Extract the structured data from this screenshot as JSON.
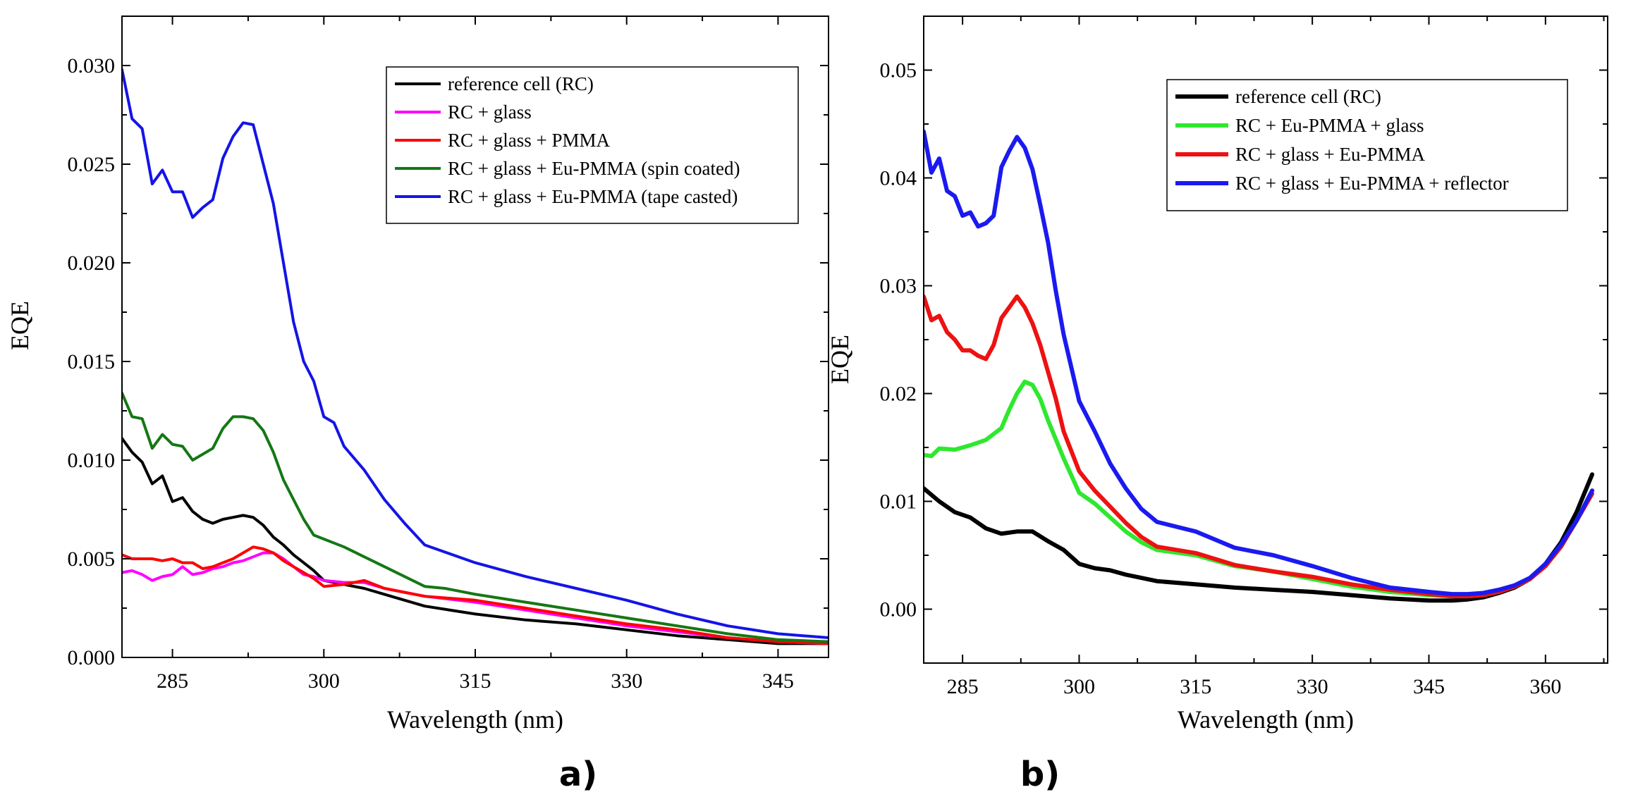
{
  "chart_data": [
    {
      "type": "line",
      "panel_label": "a)",
      "title": "",
      "xlabel": "Wavelength (nm)",
      "ylabel": "EQE",
      "xlim": [
        280,
        350
      ],
      "ylim": [
        0.0,
        0.0325
      ],
      "xticks": [
        285,
        300,
        315,
        330,
        345
      ],
      "xtick_labels": [
        "285",
        "300",
        "315",
        "330",
        "345"
      ],
      "yticks": [
        0.0,
        0.005,
        0.01,
        0.015,
        0.02,
        0.025,
        0.03
      ],
      "ytick_labels": [
        "0.000",
        "0.005",
        "0.010",
        "0.015",
        "0.020",
        "0.025",
        "0.030"
      ],
      "grid": false,
      "legend_position": "top-right",
      "series": [
        {
          "name": "reference cell (RC)",
          "color": "#000000",
          "x": [
            280,
            281,
            282,
            283,
            284,
            285,
            286,
            287,
            288,
            289,
            290,
            291,
            292,
            293,
            294,
            295,
            296,
            297,
            298,
            299,
            300,
            302,
            304,
            306,
            308,
            310,
            315,
            320,
            325,
            330,
            335,
            340,
            345,
            350
          ],
          "y": [
            0.0111,
            0.0104,
            0.0099,
            0.0088,
            0.0092,
            0.0079,
            0.0081,
            0.0074,
            0.007,
            0.0068,
            0.007,
            0.0071,
            0.0072,
            0.0071,
            0.0067,
            0.0061,
            0.0057,
            0.0052,
            0.0048,
            0.0044,
            0.0039,
            0.0037,
            0.0035,
            0.0032,
            0.0029,
            0.0026,
            0.0022,
            0.0019,
            0.0017,
            0.0014,
            0.0011,
            0.0009,
            0.0007,
            0.0007
          ]
        },
        {
          "name": "RC + glass",
          "color": "#ff00ff",
          "x": [
            280,
            281,
            282,
            283,
            284,
            285,
            286,
            287,
            288,
            289,
            290,
            291,
            292,
            293,
            294,
            295,
            296,
            297,
            298,
            299,
            300,
            302,
            304,
            306,
            308,
            310,
            315,
            320,
            325,
            330,
            335,
            340,
            345,
            350
          ],
          "y": [
            0.0043,
            0.0044,
            0.0042,
            0.0039,
            0.0041,
            0.0042,
            0.0046,
            0.0042,
            0.0043,
            0.0045,
            0.0046,
            0.0048,
            0.0049,
            0.0051,
            0.0053,
            0.0053,
            0.005,
            0.0046,
            0.0042,
            0.0041,
            0.0039,
            0.0038,
            0.0038,
            0.0035,
            0.0033,
            0.0031,
            0.0028,
            0.0024,
            0.002,
            0.0016,
            0.0013,
            0.001,
            0.0008,
            0.0007
          ]
        },
        {
          "name": "RC + glass + PMMA",
          "color": "#ff0000",
          "x": [
            280,
            281,
            282,
            283,
            284,
            285,
            286,
            287,
            288,
            289,
            290,
            291,
            292,
            293,
            294,
            295,
            296,
            297,
            298,
            299,
            300,
            302,
            304,
            306,
            308,
            310,
            315,
            320,
            325,
            330,
            335,
            340,
            345,
            350
          ],
          "y": [
            0.0052,
            0.005,
            0.005,
            0.005,
            0.0049,
            0.005,
            0.0048,
            0.0048,
            0.0045,
            0.0046,
            0.0048,
            0.005,
            0.0053,
            0.0056,
            0.0055,
            0.0053,
            0.0049,
            0.0046,
            0.0043,
            0.004,
            0.0036,
            0.0037,
            0.0039,
            0.0035,
            0.0033,
            0.0031,
            0.0029,
            0.0025,
            0.0021,
            0.0017,
            0.0014,
            0.001,
            0.0008,
            0.0007
          ]
        },
        {
          "name": "RC + glass + Eu-PMMA (spin coated)",
          "color": "#147814",
          "x": [
            280,
            281,
            282,
            283,
            284,
            285,
            286,
            287,
            288,
            289,
            290,
            291,
            292,
            293,
            294,
            295,
            296,
            297,
            298,
            299,
            300,
            302,
            304,
            306,
            308,
            310,
            312,
            315,
            320,
            325,
            330,
            335,
            340,
            345,
            350
          ],
          "y": [
            0.0134,
            0.0122,
            0.0121,
            0.0106,
            0.0113,
            0.0108,
            0.0107,
            0.01,
            0.0103,
            0.0106,
            0.0116,
            0.0122,
            0.0122,
            0.0121,
            0.0115,
            0.0104,
            0.009,
            0.008,
            0.007,
            0.0062,
            0.006,
            0.0056,
            0.0051,
            0.0046,
            0.0041,
            0.0036,
            0.0035,
            0.0032,
            0.0028,
            0.0024,
            0.002,
            0.0016,
            0.0012,
            0.0009,
            0.0008
          ]
        },
        {
          "name": "RC + glass + Eu-PMMA (tape casted)",
          "color": "#1414e6",
          "x": [
            280,
            281,
            282,
            283,
            284,
            285,
            286,
            287,
            288,
            289,
            290,
            291,
            292,
            293,
            294,
            295,
            296,
            297,
            298,
            299,
            300,
            301,
            302,
            304,
            306,
            308,
            310,
            315,
            320,
            325,
            330,
            335,
            340,
            345,
            350
          ],
          "y": [
            0.0298,
            0.0273,
            0.0268,
            0.024,
            0.0247,
            0.0236,
            0.0236,
            0.0223,
            0.0228,
            0.0232,
            0.0253,
            0.0264,
            0.0271,
            0.027,
            0.025,
            0.023,
            0.02,
            0.017,
            0.015,
            0.014,
            0.0122,
            0.0119,
            0.0107,
            0.0095,
            0.008,
            0.0068,
            0.0057,
            0.0048,
            0.0041,
            0.0035,
            0.0029,
            0.0022,
            0.0016,
            0.0012,
            0.001
          ]
        }
      ]
    },
    {
      "type": "line",
      "panel_label": "b)",
      "title": "",
      "xlabel": "Wavelength (nm)",
      "ylabel": "EQE",
      "xlim": [
        280,
        368
      ],
      "ylim": [
        -0.005,
        0.055
      ],
      "xticks": [
        285,
        300,
        315,
        330,
        345,
        360
      ],
      "xtick_labels": [
        "285",
        "300",
        "315",
        "330",
        "345",
        "360"
      ],
      "yticks": [
        0.0,
        0.01,
        0.02,
        0.03,
        0.04,
        0.05
      ],
      "ytick_labels": [
        "0.00",
        "0.01",
        "0.02",
        "0.03",
        "0.04",
        "0.05"
      ],
      "grid": false,
      "legend_position": "top-right",
      "series": [
        {
          "name": "reference cell (RC)",
          "color": "#000000",
          "x": [
            280,
            282,
            284,
            286,
            288,
            290,
            292,
            294,
            296,
            298,
            300,
            302,
            304,
            306,
            308,
            310,
            315,
            320,
            325,
            330,
            335,
            340,
            345,
            348,
            350,
            352,
            354,
            356,
            358,
            360,
            362,
            364,
            366
          ],
          "y": [
            0.0112,
            0.01,
            0.009,
            0.0085,
            0.0075,
            0.007,
            0.0072,
            0.0072,
            0.0063,
            0.0055,
            0.0042,
            0.0038,
            0.0036,
            0.0032,
            0.0029,
            0.0026,
            0.0023,
            0.002,
            0.0018,
            0.0016,
            0.0013,
            0.001,
            0.0008,
            0.0008,
            0.0009,
            0.0011,
            0.0015,
            0.002,
            0.0028,
            0.0042,
            0.0062,
            0.009,
            0.0125
          ]
        },
        {
          "name": "RC + Eu-PMMA + glass",
          "color": "#2ee82e",
          "x": [
            280,
            281,
            282,
            284,
            286,
            288,
            290,
            291,
            292,
            293,
            294,
            295,
            296,
            298,
            300,
            302,
            304,
            306,
            308,
            310,
            315,
            320,
            325,
            330,
            335,
            340,
            345,
            348,
            350,
            352,
            354,
            356,
            358,
            360,
            362,
            364,
            366
          ],
          "y": [
            0.0143,
            0.0142,
            0.0149,
            0.0148,
            0.0152,
            0.0157,
            0.0168,
            0.0185,
            0.02,
            0.0211,
            0.0208,
            0.0195,
            0.0175,
            0.014,
            0.0108,
            0.0098,
            0.0085,
            0.0072,
            0.0062,
            0.0055,
            0.005,
            0.004,
            0.0035,
            0.0028,
            0.0021,
            0.0016,
            0.0013,
            0.0012,
            0.0012,
            0.0013,
            0.0016,
            0.0021,
            0.0028,
            0.004,
            0.0058,
            0.0082,
            0.011
          ]
        },
        {
          "name": "RC + glass + Eu-PMMA",
          "color": "#ee1111",
          "x": [
            280,
            281,
            282,
            283,
            284,
            285,
            286,
            287,
            288,
            289,
            290,
            291,
            292,
            293,
            294,
            295,
            296,
            297,
            298,
            300,
            302,
            304,
            306,
            308,
            310,
            315,
            320,
            325,
            330,
            335,
            340,
            345,
            348,
            350,
            352,
            354,
            356,
            358,
            360,
            362,
            364,
            366
          ],
          "y": [
            0.029,
            0.0268,
            0.0272,
            0.0257,
            0.025,
            0.024,
            0.024,
            0.0235,
            0.0232,
            0.0245,
            0.027,
            0.028,
            0.029,
            0.028,
            0.0265,
            0.0245,
            0.022,
            0.0195,
            0.0165,
            0.0128,
            0.011,
            0.0095,
            0.008,
            0.0067,
            0.0058,
            0.0052,
            0.0041,
            0.0035,
            0.003,
            0.0023,
            0.0018,
            0.0014,
            0.0012,
            0.0012,
            0.0013,
            0.0016,
            0.0021,
            0.0028,
            0.004,
            0.0058,
            0.0082,
            0.0107
          ]
        },
        {
          "name": "RC + glass + Eu-PMMA + reflector",
          "color": "#1a1af0",
          "x": [
            280,
            281,
            282,
            283,
            284,
            285,
            286,
            287,
            288,
            289,
            290,
            291,
            292,
            293,
            294,
            295,
            296,
            297,
            298,
            300,
            302,
            304,
            306,
            308,
            310,
            315,
            320,
            325,
            330,
            335,
            340,
            345,
            348,
            350,
            352,
            354,
            356,
            358,
            360,
            362,
            364,
            366
          ],
          "y": [
            0.0443,
            0.0405,
            0.0418,
            0.0388,
            0.0383,
            0.0365,
            0.0368,
            0.0355,
            0.0358,
            0.0365,
            0.041,
            0.0425,
            0.0438,
            0.0428,
            0.0408,
            0.0375,
            0.034,
            0.0295,
            0.0255,
            0.0193,
            0.0165,
            0.0135,
            0.0112,
            0.0093,
            0.0081,
            0.0072,
            0.0057,
            0.005,
            0.004,
            0.0029,
            0.002,
            0.0016,
            0.0014,
            0.0014,
            0.0015,
            0.0018,
            0.0022,
            0.0029,
            0.0042,
            0.006,
            0.0082,
            0.011
          ]
        }
      ]
    }
  ]
}
